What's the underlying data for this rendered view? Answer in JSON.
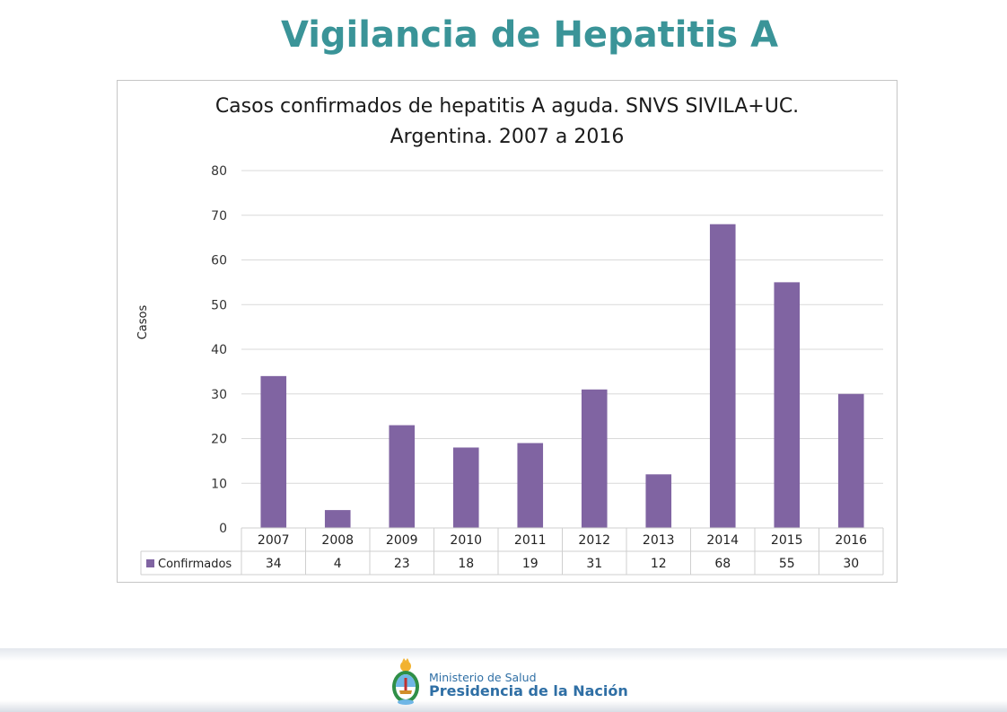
{
  "slide": {
    "title": "Vigilancia de Hepatitis A"
  },
  "chart_data": {
    "type": "bar",
    "title_lines": [
      "Casos confirmados de hepatitis A aguda. SNVS SIVILA+UC.",
      "Argentina. 2007 a 2016"
    ],
    "xlabel": "",
    "ylabel": "Casos",
    "ylim": [
      0,
      80
    ],
    "yticks": [
      0,
      10,
      20,
      30,
      40,
      50,
      60,
      70,
      80
    ],
    "categories": [
      "2007",
      "2008",
      "2009",
      "2010",
      "2011",
      "2012",
      "2013",
      "2014",
      "2015",
      "2016"
    ],
    "series": [
      {
        "name": "Confirmados",
        "values": [
          34,
          4,
          23,
          18,
          19,
          31,
          12,
          68,
          55,
          30
        ],
        "color": "#8064a2"
      }
    ],
    "grid": true,
    "data_table": true
  },
  "footer": {
    "ministry": "Ministerio de Salud",
    "presidency": "Presidencia de la Nación",
    "brand_color": "#2f6fa5"
  }
}
